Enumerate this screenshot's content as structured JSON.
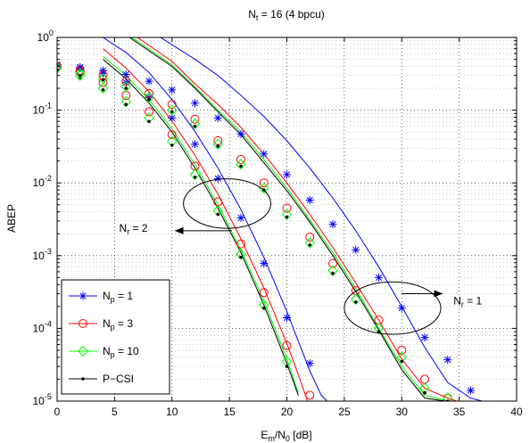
{
  "chart_data": {
    "type": "line",
    "title": "N_t = 16 (4 bpcu)",
    "title_main": "N",
    "title_sub": "t",
    "title_rest": " = 16 (4 bpcu)",
    "xlabel_main": "E",
    "xlabel_sub1": "m",
    "xlabel_mid": "/N",
    "xlabel_sub2": "0",
    "xlabel_rest": " [dB]",
    "ylabel": "ABEP",
    "xlim": [
      0,
      40
    ],
    "ylim": [
      1e-05,
      1
    ],
    "yscale": "log",
    "grid": true,
    "xticks": [
      0,
      5,
      10,
      15,
      20,
      25,
      30,
      35,
      40
    ],
    "yticks": [
      {
        "value": 1,
        "base": "10",
        "exp": "0"
      },
      {
        "value": 0.1,
        "base": "10",
        "exp": "-1"
      },
      {
        "value": 0.01,
        "base": "10",
        "exp": "-2"
      },
      {
        "value": 0.001,
        "base": "10",
        "exp": "-3"
      },
      {
        "value": 0.0001,
        "base": "10",
        "exp": "-4"
      },
      {
        "value": 1e-05,
        "base": "10",
        "exp": "-5"
      }
    ],
    "legend_position": "bottom-left",
    "series": [
      {
        "name": "N_p = 1",
        "label_main": "N",
        "label_sub": "p",
        "label_rest": " = 1",
        "color": "#0000ff",
        "marker": "star",
        "group": "N_r = 2",
        "markers": {
          "x": [
            0,
            2,
            4,
            6,
            8,
            10,
            12,
            14,
            16,
            18,
            20,
            22
          ],
          "y": [
            0.42,
            0.38,
            0.32,
            0.24,
            0.15,
            0.078,
            0.034,
            0.0115,
            0.0033,
            0.00078,
            0.00014,
            3.3e-05
          ]
        },
        "curve": {
          "x": [
            4,
            6,
            8,
            10,
            12,
            14,
            16,
            18,
            20,
            22,
            23,
            23.5
          ],
          "y": [
            1,
            0.62,
            0.33,
            0.14,
            0.051,
            0.016,
            0.0043,
            0.00095,
            0.00017,
            2.6e-05,
            1.2e-05,
            1e-05
          ]
        }
      },
      {
        "name": "N_p = 3",
        "label_main": "N",
        "label_sub": "p",
        "label_rest": " = 3",
        "color": "#ff0000",
        "marker": "circle",
        "group": "N_r = 2",
        "markers": {
          "x": [
            0,
            2,
            4,
            6,
            8,
            10,
            12,
            14,
            16,
            18,
            20,
            22
          ],
          "y": [
            0.4,
            0.34,
            0.24,
            0.16,
            0.095,
            0.046,
            0.017,
            0.0055,
            0.00145,
            0.00031,
            5.8e-05,
            1.2e-05
          ]
        },
        "curve": {
          "x": [
            4,
            6,
            8,
            10,
            12,
            14,
            16,
            18,
            20,
            21,
            21.8
          ],
          "y": [
            0.7,
            0.38,
            0.18,
            0.071,
            0.024,
            0.007,
            0.0017,
            0.00036,
            6.2e-05,
            2.3e-05,
            1e-05
          ]
        }
      },
      {
        "name": "N_p = 10",
        "label_main": "N",
        "label_sub": "p",
        "label_rest": " = 10",
        "color": "#00ff00",
        "marker": "diamond",
        "group": "N_r = 2",
        "markers": {
          "x": [
            0,
            2,
            4,
            6,
            8,
            10,
            12,
            14,
            16,
            18,
            20
          ],
          "y": [
            0.38,
            0.3,
            0.2,
            0.13,
            0.078,
            0.037,
            0.013,
            0.0041,
            0.00105,
            0.00021,
            3.5e-05
          ]
        },
        "curve": {
          "x": [
            4,
            6,
            8,
            10,
            12,
            14,
            16,
            18,
            20,
            21
          ],
          "y": [
            0.55,
            0.3,
            0.14,
            0.055,
            0.018,
            0.005,
            0.0012,
            0.00024,
            3.8e-05,
            1.3e-05
          ]
        }
      },
      {
        "name": "P-CSI",
        "label_main": "P−CSI",
        "label_sub": "",
        "label_rest": "",
        "color": "#000000",
        "marker": "dot",
        "group": "N_r = 2",
        "markers": {
          "x": [
            0,
            2,
            4,
            6,
            8,
            10,
            12,
            14,
            16,
            18,
            20
          ],
          "y": [
            0.36,
            0.28,
            0.19,
            0.12,
            0.07,
            0.033,
            0.012,
            0.0037,
            0.00095,
            0.00019,
            3e-05
          ]
        },
        "curve": {
          "x": [
            4,
            6,
            8,
            10,
            12,
            14,
            16,
            18,
            20,
            21
          ],
          "y": [
            0.5,
            0.27,
            0.125,
            0.05,
            0.016,
            0.0045,
            0.0011,
            0.00021,
            3.3e-05,
            1.2e-05
          ]
        }
      },
      {
        "name": "N_p = 1 (N_r = 1)",
        "color": "#0000ff",
        "marker": "star",
        "group": "N_r = 1",
        "markers": {
          "x": [
            0,
            2,
            4,
            6,
            8,
            10,
            12,
            14,
            16,
            18,
            20,
            22,
            24,
            26,
            28,
            30,
            32,
            34,
            36
          ],
          "y": [
            0.42,
            0.39,
            0.35,
            0.31,
            0.25,
            0.19,
            0.125,
            0.078,
            0.047,
            0.025,
            0.013,
            0.0058,
            0.0027,
            0.0012,
            0.0005,
            0.00019,
            7.5e-05,
            3.7e-05,
            1.4e-05
          ]
        },
        "curve": {
          "x": [
            9,
            12,
            14,
            16,
            18,
            20,
            22,
            24,
            26,
            28,
            30,
            32,
            34,
            36,
            37
          ],
          "y": [
            1,
            0.5,
            0.3,
            0.16,
            0.082,
            0.038,
            0.016,
            0.0062,
            0.0022,
            0.0007,
            0.0002,
            5.5e-05,
            1.8e-05,
            1.1e-05,
            1e-05
          ]
        }
      },
      {
        "name": "N_p = 3 (N_r = 1)",
        "color": "#ff0000",
        "marker": "circle",
        "group": "N_r = 1",
        "markers": {
          "x": [
            0,
            2,
            4,
            6,
            8,
            10,
            12,
            14,
            16,
            18,
            20,
            22,
            24,
            26,
            28,
            30,
            32,
            34
          ],
          "y": [
            0.4,
            0.35,
            0.3,
            0.25,
            0.17,
            0.12,
            0.075,
            0.038,
            0.021,
            0.01,
            0.0045,
            0.0018,
            0.00078,
            0.00033,
            0.00013,
            5e-05,
            2e-05,
            1.1e-05
          ]
        },
        "curve": {
          "x": [
            7,
            10,
            12,
            14,
            16,
            18,
            20,
            22,
            24,
            26,
            28,
            30,
            32,
            34,
            34.8
          ],
          "y": [
            1,
            0.47,
            0.23,
            0.12,
            0.058,
            0.025,
            0.01,
            0.0037,
            0.0013,
            0.00042,
            0.00013,
            3.8e-05,
            1.5e-05,
            1.1e-05,
            1e-05
          ]
        }
      },
      {
        "name": "N_p = 10 (N_r = 1)",
        "color": "#00ff00",
        "marker": "diamond",
        "group": "N_r = 1",
        "markers": {
          "x": [
            0,
            2,
            4,
            6,
            8,
            10,
            12,
            14,
            16,
            18,
            20,
            22,
            24,
            26,
            28,
            30,
            32,
            34
          ],
          "y": [
            0.38,
            0.32,
            0.27,
            0.21,
            0.15,
            0.1,
            0.065,
            0.034,
            0.018,
            0.0085,
            0.0037,
            0.0015,
            0.00062,
            0.00025,
            0.0001,
            4e-05,
            1.5e-05,
            1.1e-05
          ]
        },
        "curve": {
          "x": [
            6.5,
            10,
            12,
            14,
            16,
            18,
            20,
            22,
            24,
            26,
            28,
            30,
            32,
            34
          ],
          "y": [
            1,
            0.42,
            0.21,
            0.1,
            0.05,
            0.021,
            0.0085,
            0.0031,
            0.0011,
            0.00035,
            0.0001,
            3e-05,
            1.2e-05,
            1e-05
          ]
        }
      },
      {
        "name": "P-CSI (N_r = 1)",
        "color": "#000000",
        "marker": "dot",
        "group": "N_r = 1",
        "markers": {
          "x": [
            0,
            2,
            4,
            6,
            8,
            10,
            12,
            14,
            16,
            18,
            20,
            22,
            24,
            26,
            28,
            30,
            32,
            34
          ],
          "y": [
            0.36,
            0.3,
            0.26,
            0.2,
            0.14,
            0.095,
            0.06,
            0.032,
            0.017,
            0.008,
            0.0034,
            0.0014,
            0.00057,
            0.00023,
            9e-05,
            3.5e-05,
            1.3e-05,
            1e-05
          ]
        },
        "curve": {
          "x": [
            6.3,
            10,
            12,
            14,
            16,
            18,
            20,
            22,
            24,
            26,
            28,
            30,
            32,
            33.8
          ],
          "y": [
            1,
            0.4,
            0.2,
            0.095,
            0.046,
            0.019,
            0.0078,
            0.0029,
            0.001,
            0.00032,
            9.5e-05,
            2.7e-05,
            1.1e-05,
            1e-05
          ]
        }
      }
    ],
    "annotations": [
      {
        "id": "nr2",
        "label_main": "N",
        "label_sub": "r",
        "label_rest": " = 2",
        "ellipse_center": [
          14.8,
          0.0052
        ],
        "ellipse_rx_db": 3.8,
        "ellipse_ry_decades": 0.34,
        "arrow_from": [
          15.2,
          0.0022
        ],
        "arrow_to": [
          10.3,
          0.0022
        ],
        "text_at": [
          5.4,
          0.0024
        ]
      },
      {
        "id": "nr1",
        "label_main": "N",
        "label_sub": "r",
        "label_rest": " = 1",
        "ellipse_center": [
          29.2,
          0.00019
        ],
        "ellipse_rx_db": 4.2,
        "ellipse_ry_decades": 0.36,
        "arrow_from": [
          30,
          0.0003
        ],
        "arrow_to": [
          33.5,
          0.0003
        ],
        "text_at": [
          34.5,
          0.00024
        ]
      }
    ]
  }
}
